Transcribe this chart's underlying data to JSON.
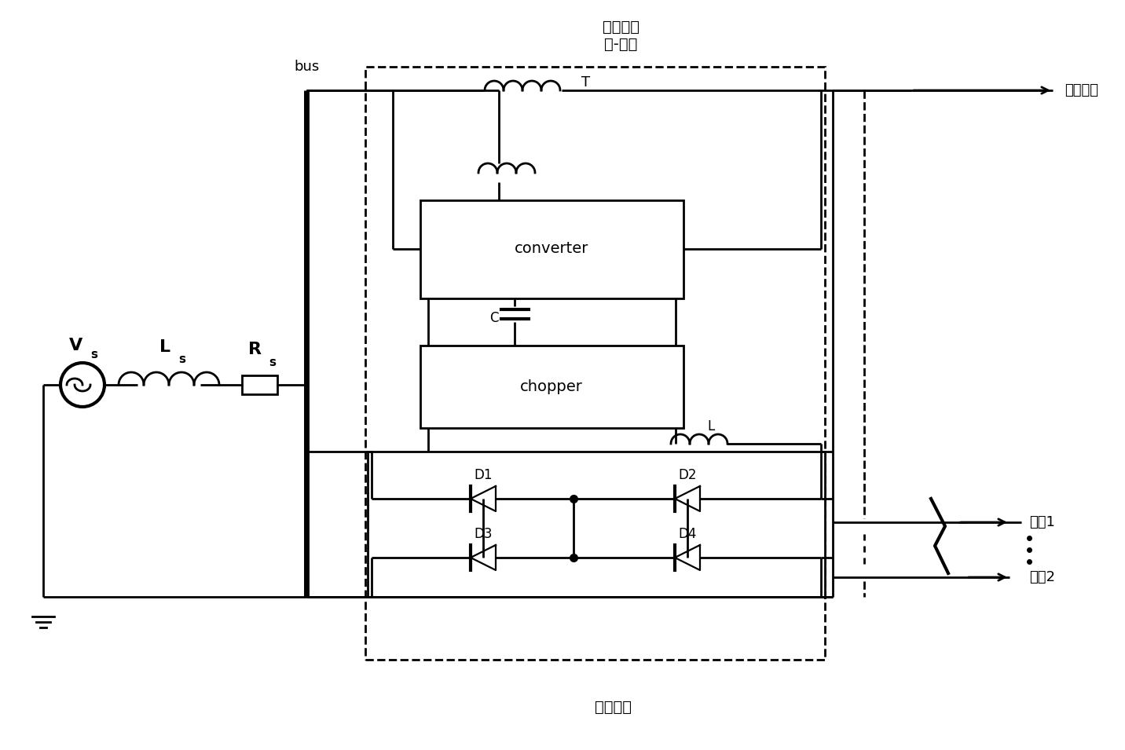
{
  "background_color": "#ffffff",
  "line_color": "#000000",
  "line_width": 2.0,
  "label_bus": "bus",
  "label_T": "T",
  "label_converter": "converter",
  "label_chopper": "chopper",
  "label_C": "C",
  "label_L": "L",
  "label_D1": "D1",
  "label_D2": "D2",
  "label_D3": "D3",
  "label_D4": "D4",
  "label_sensitive_load": "敏感负载",
  "label_feeder1": "馈线1",
  "label_feeder2": "馈线2",
  "label_normal_load": "普通负载",
  "label_bridge": "桥路型限\n流-储能"
}
